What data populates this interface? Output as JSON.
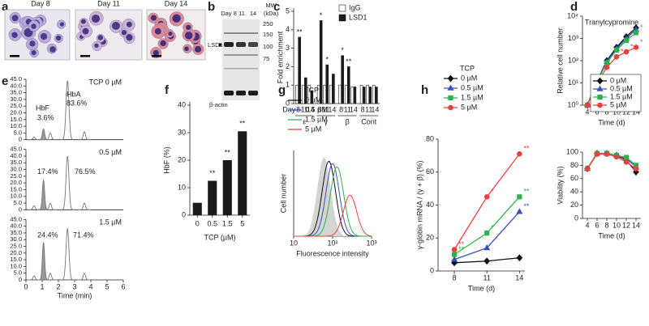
{
  "panel_labels": [
    "a",
    "b",
    "c",
    "d",
    "e",
    "f",
    "g",
    "h"
  ],
  "micrographs": {
    "labels": [
      "Day 8",
      "Day 11",
      "Day 14"
    ]
  },
  "blot": {
    "lanes": [
      "Day 8",
      "11",
      "14"
    ],
    "mw_title": "MW",
    "mw_unit": "(kDa)",
    "mw_markers": [
      "250",
      "150",
      "100",
      "75"
    ],
    "bands": [
      "LSD1",
      "β-actin"
    ]
  },
  "chart_data": [
    {
      "type": "grouped_bar",
      "y_label": "Fold enrichment",
      "x_label": "Day",
      "categories": [
        "8",
        "11",
        "14",
        "8",
        "11",
        "14",
        "8",
        "11",
        "14",
        "8",
        "11",
        "14"
      ],
      "groups": [
        "ε",
        "γ",
        "β",
        "Cont"
      ],
      "ylim": [
        0,
        5
      ],
      "yticks": [
        0,
        1,
        2,
        3,
        4,
        5
      ],
      "series": [
        {
          "name": "IgG",
          "color": "#ffffff",
          "values": [
            1,
            1,
            1,
            1,
            1,
            1,
            1,
            1,
            0.9,
            1,
            1,
            1
          ]
        },
        {
          "name": "LSD1",
          "color": "#1a1a1a",
          "values": [
            3.6,
            1.4,
            0.7,
            4.5,
            2.1,
            1.6,
            2.6,
            2.0,
            0.9,
            0.9,
            0.9,
            0.9
          ],
          "significance": [
            "**",
            null,
            null,
            "*",
            "*",
            null,
            "*",
            "**",
            null,
            null,
            null,
            null
          ]
        }
      ]
    },
    {
      "type": "line",
      "title": "Tranylcypromine",
      "y_label": "Relative cell number",
      "x_label": "Time (d)",
      "ylog": true,
      "x": [
        4,
        6,
        8,
        10,
        12,
        14
      ],
      "xlim": [
        3,
        15
      ],
      "xticks": [
        4,
        6,
        8,
        10,
        12,
        14
      ],
      "ylim": [
        1,
        10000
      ],
      "yticks": [
        {
          "value": 1,
          "label": "10⁰"
        },
        {
          "value": 10,
          "label": "10¹"
        },
        {
          "value": 100,
          "label": "10²"
        },
        {
          "value": 1000,
          "label": "10³"
        },
        {
          "value": 10000,
          "label": "10⁴"
        }
      ],
      "series": [
        {
          "name": "0 µM",
          "color": "#111111",
          "marker": "diamond",
          "values": [
            1,
            12,
            100,
            400,
            1200,
            3000
          ]
        },
        {
          "name": "0.5 µM",
          "color": "#3b4fbf",
          "marker": "triangle",
          "values": [
            1,
            12,
            90,
            350,
            1000,
            2500
          ]
        },
        {
          "name": "1.5 µM",
          "color": "#2bb34a",
          "marker": "square",
          "values": [
            1,
            12,
            80,
            300,
            800,
            1800
          ],
          "significance": [
            null,
            null,
            null,
            null,
            null,
            "*"
          ]
        },
        {
          "name": "5 µM",
          "color": "#e8413c",
          "marker": "circle",
          "values": [
            1,
            10,
            50,
            150,
            250,
            400
          ],
          "significance": [
            null,
            null,
            null,
            "*",
            "*",
            "*"
          ]
        }
      ]
    },
    {
      "type": "line",
      "y_label": "Viability (%)",
      "x_label": "Time (d)",
      "x": [
        4,
        6,
        8,
        10,
        12,
        14
      ],
      "xlim": [
        3,
        15
      ],
      "xticks": [
        4,
        6,
        8,
        10,
        12,
        14
      ],
      "ylim": [
        0,
        100
      ],
      "yticks": [
        0,
        20,
        40,
        60,
        80,
        100
      ],
      "series": [
        {
          "color": "#111111",
          "marker": "diamond",
          "values": [
            75,
            98,
            98,
            95,
            88,
            70
          ]
        },
        {
          "color": "#3b4fbf",
          "marker": "triangle",
          "values": [
            75,
            98,
            98,
            95,
            90,
            78
          ]
        },
        {
          "color": "#2bb34a",
          "marker": "square",
          "values": [
            75,
            98,
            98,
            95,
            92,
            80
          ]
        },
        {
          "color": "#e8413c",
          "marker": "circle",
          "values": [
            75,
            97,
            97,
            93,
            85,
            75
          ]
        }
      ]
    },
    {
      "type": "chromatogram",
      "x_label": "Time (min)",
      "xlim": [
        0,
        6
      ],
      "xticks": [
        0,
        1,
        2,
        3,
        4,
        5,
        6
      ],
      "ylim": [
        0,
        45
      ],
      "yticks": [
        0,
        {
          "value": 5,
          "label": "5.0"
        },
        {
          "value": 10,
          "label": "10.0"
        },
        {
          "value": 15,
          "label": "15.0"
        },
        {
          "value": 20,
          "label": "20.0"
        },
        {
          "value": 25,
          "label": "25.0"
        },
        {
          "value": 30,
          "label": "30.0"
        },
        {
          "value": 35,
          "label": "35.0"
        },
        {
          "value": 40,
          "label": "40.0"
        },
        {
          "value": 45,
          "label": "45.0"
        }
      ],
      "panels": [
        {
          "title": "TCP 0 µM",
          "annotations": [
            "HbF",
            "3.6%",
            "HbA",
            "83.6%"
          ],
          "peaks": [
            {
              "time": 0.5,
              "height": 2
            },
            {
              "time": 1.08,
              "height": 8,
              "fill": "#999999"
            },
            {
              "time": 1.5,
              "height": 5
            },
            {
              "time": 2.56,
              "height": 44
            },
            {
              "time": 3.6,
              "height": 6
            }
          ]
        },
        {
          "title": "0.5 µM",
          "annotations": [
            "17.4%",
            "76.5%"
          ],
          "peaks": [
            {
              "time": 0.5,
              "height": 3
            },
            {
              "time": 1.08,
              "height": 22,
              "fill": "#999999"
            },
            {
              "time": 1.5,
              "height": 5
            },
            {
              "time": 2.56,
              "height": 40
            },
            {
              "time": 3.6,
              "height": 5
            }
          ]
        },
        {
          "title": "1.5 µM",
          "annotations": [
            "24.4%",
            "71.4%"
          ],
          "peaks": [
            {
              "time": 0.5,
              "height": 3
            },
            {
              "time": 1.08,
              "height": 28,
              "fill": "#999999"
            },
            {
              "time": 1.5,
              "height": 5
            },
            {
              "time": 2.56,
              "height": 38
            },
            {
              "time": 3.6,
              "height": 5
            }
          ]
        }
      ]
    },
    {
      "type": "bar",
      "y_label": "HbF (%)",
      "x_label": "TCP (µM)",
      "categories": [
        "0",
        "0.5",
        "1.5",
        "5"
      ],
      "values": [
        4.5,
        12.5,
        20,
        30.5
      ],
      "color": "#1a1a1a",
      "significance": [
        null,
        "**",
        "**",
        "**"
      ],
      "ylim": [
        0,
        40
      ],
      "yticks": [
        0,
        10,
        20,
        30,
        40
      ]
    },
    {
      "type": "flow_histogram",
      "legend_title": "TCP",
      "x_label": "Fluorescence intensity",
      "y_label": "Cell number",
      "xlog": true,
      "xlim": [
        10,
        1000
      ],
      "xticks": [
        10,
        {
          "value": 100,
          "label": "10²"
        },
        {
          "value": 1000,
          "label": "10³"
        }
      ],
      "control": {
        "color": "#d4d4d4",
        "peak": 60,
        "height": 1
      },
      "series": [
        {
          "name": "0 µM",
          "color": "#111111",
          "peak": 80,
          "height": 0.95
        },
        {
          "name": "0.5 µM",
          "color": "#3b4fbf",
          "peak": 100,
          "height": 0.92
        },
        {
          "name": "1.5 µM",
          "color": "#2bb34a",
          "peak": 130,
          "height": 0.88
        },
        {
          "name": "5 µM",
          "color": "#e8413c",
          "peak": 280,
          "height": 0.52
        }
      ]
    },
    {
      "type": "line",
      "legend_title": "TCP",
      "y_label": "γ-globin mRNA / (γ + β) (%)",
      "x_label": "Time (d)",
      "x": [
        8,
        11,
        14
      ],
      "xlim": [
        6.5,
        14.5
      ],
      "xticks": [
        8,
        11,
        14
      ],
      "ylim": [
        0,
        80
      ],
      "yticks": [
        0,
        20,
        40,
        60,
        80
      ],
      "series": [
        {
          "name": "0 µM",
          "color": "#111111",
          "marker": "diamond",
          "values": [
            5,
            6,
            8
          ]
        },
        {
          "name": "0.5 µM",
          "color": "#3b4fbf",
          "marker": "triangle",
          "values": [
            7,
            14,
            36
          ],
          "significance": [
            null,
            null,
            "**"
          ]
        },
        {
          "name": "1.5 µM",
          "color": "#2bb34a",
          "marker": "square",
          "values": [
            10,
            23,
            45
          ],
          "significance": [
            "**",
            "*",
            "**"
          ]
        },
        {
          "name": "5 µM",
          "color": "#e8413c",
          "marker": "circle",
          "values": [
            13,
            45,
            71
          ],
          "significance": [
            "**",
            "*",
            "**"
          ]
        }
      ]
    }
  ]
}
